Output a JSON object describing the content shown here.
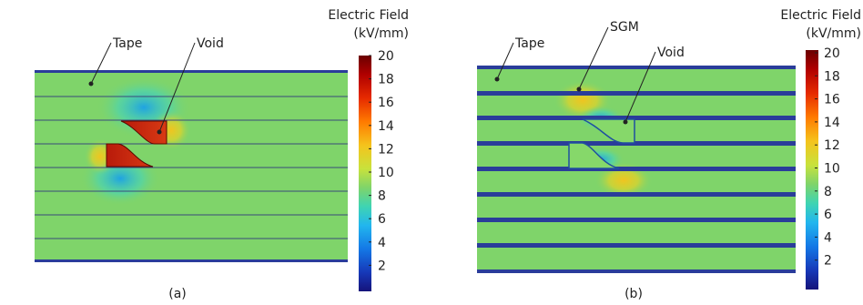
{
  "panels": [
    {
      "caption": "(a)",
      "annotations": {
        "tape": "Tape",
        "void": "Void"
      },
      "colorbar": {
        "title_line1": "Electric Field",
        "title_line2": "(kV/mm)",
        "ticks": [
          "20",
          "18",
          "16",
          "14",
          "12",
          "10",
          "8",
          "6",
          "4",
          "2"
        ]
      }
    },
    {
      "caption": "(b)",
      "annotations": {
        "tape": "Tape",
        "sgm": "SGM",
        "void": "Void"
      },
      "colorbar": {
        "title_line1": "Electric Field",
        "title_line2": "(kV/mm)",
        "ticks": [
          "20",
          "18",
          "16",
          "14",
          "12",
          "10",
          "8",
          "6",
          "4",
          "2"
        ]
      }
    }
  ],
  "colors": {
    "background_field": "#7fd46a",
    "tape_line": "#2a3d9a",
    "void_hot": "#c62a1a",
    "field_high": "#f2b21c",
    "field_low": "#2aa9e6"
  },
  "colormap": [
    "#6b0000",
    "#a80000",
    "#e01a00",
    "#ff5a00",
    "#ff9a00",
    "#f5d31c",
    "#c8e23c",
    "#7fd46a",
    "#3fd4b2",
    "#22b6ee",
    "#1478e6",
    "#1638b8",
    "#15137a"
  ]
}
